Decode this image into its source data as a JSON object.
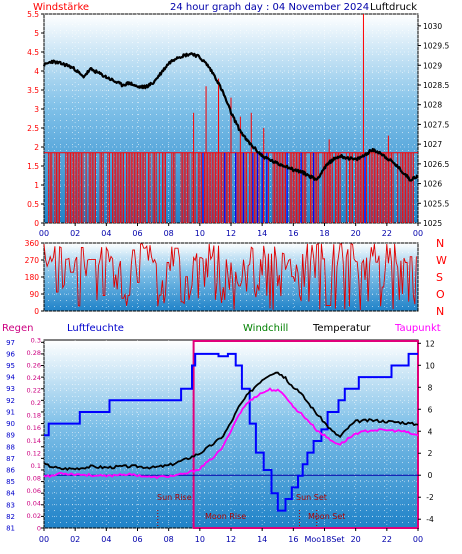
{
  "header": {
    "left_label": "Windstärke",
    "title": "24 hour graph day : 04 November 2024",
    "right_label": "Luftdruck"
  },
  "wind_dir_labels": [
    "N",
    "W",
    "S",
    "O",
    "N"
  ],
  "bottom_header": {
    "regen": "Regen",
    "luftfeuchte": "Luftfeuchte",
    "windchill": "Windchill",
    "temperatur": "Temperatur",
    "taupunkt": "Taupunkt"
  },
  "annotations": {
    "sun_rise": "Sun Rise",
    "moon_rise": "Moon Rise",
    "sun_set": "Sun Set",
    "moon_set": "Moon Set",
    "moon_set_tick": "Moo18Set"
  },
  "colors": {
    "wind": "#ff0000",
    "gust": "#0000ff",
    "pressure": "#000000",
    "direction": "#e00000",
    "humidity": "#0000ff",
    "temperature": "#000000",
    "dewpoint": "#ff00ff",
    "rain_box": "#e0007a",
    "axis_left": "#ff0000",
    "axis_rain": "#cc0080",
    "axis_hum": "#0000cc",
    "windchill_label": "#008000",
    "title": "#0000aa"
  },
  "chart_data": [
    {
      "type": "line",
      "name": "wind-pressure",
      "x_ticks": [
        "00",
        "02",
        "04",
        "06",
        "08",
        "10",
        "12",
        "14",
        "16",
        "18",
        "20",
        "22",
        "00"
      ],
      "yleft_label": "Windstärke",
      "yleft_ticks": [
        "0",
        "0.5",
        "1",
        "1.5",
        "2",
        "2.5",
        "3",
        "3.5",
        "4",
        "4.5",
        "5",
        "5.5"
      ],
      "ylim_left": [
        0,
        5.5
      ],
      "yright_label": "Luftdruck",
      "yright_ticks": [
        "1025",
        "1025.5",
        "1026",
        "1026.5",
        "1027",
        "1027.5",
        "1028",
        "1028.5",
        "1029",
        "1029.5",
        "1030"
      ],
      "ylim_right": [
        1025,
        1030.3
      ],
      "pressure_x": [
        0,
        0.5,
        1,
        1.5,
        2,
        2.5,
        3,
        3.5,
        4,
        4.5,
        5,
        5.5,
        6,
        6.5,
        7,
        7.5,
        8,
        8.5,
        9,
        9.5,
        10,
        10.5,
        11,
        11.5,
        12,
        12.5,
        13,
        13.5,
        14,
        14.5,
        15,
        15.5,
        16,
        16.5,
        17,
        17.5,
        18,
        18.5,
        19,
        19.5,
        20,
        20.5,
        21,
        21.5,
        22,
        22.5,
        23,
        23.5,
        24
      ],
      "pressure": [
        1029.0,
        1029.1,
        1029.05,
        1029.0,
        1028.9,
        1028.7,
        1028.9,
        1028.8,
        1028.7,
        1028.6,
        1028.5,
        1028.55,
        1028.45,
        1028.45,
        1028.55,
        1028.8,
        1029.05,
        1029.2,
        1029.25,
        1029.3,
        1029.2,
        1029.0,
        1028.7,
        1028.3,
        1027.8,
        1027.4,
        1027.1,
        1026.9,
        1026.7,
        1026.6,
        1026.5,
        1026.45,
        1026.35,
        1026.3,
        1026.2,
        1026.1,
        1026.4,
        1026.6,
        1026.7,
        1026.65,
        1026.6,
        1026.7,
        1026.85,
        1026.8,
        1026.65,
        1026.5,
        1026.3,
        1026.1,
        1026.2
      ],
      "wind_base": 1.85,
      "wind_gust_spikes": [
        {
          "h": 9.6,
          "v": 2.9
        },
        {
          "h": 10.4,
          "v": 3.6
        },
        {
          "h": 11.2,
          "v": 3.8
        },
        {
          "h": 12.0,
          "v": 3.3
        },
        {
          "h": 12.6,
          "v": 2.8
        },
        {
          "h": 13.3,
          "v": 2.9
        },
        {
          "h": 14.1,
          "v": 2.5
        },
        {
          "h": 18.3,
          "v": 2.2
        },
        {
          "h": 20.5,
          "v": 5.5
        },
        {
          "h": 22.1,
          "v": 2.3
        }
      ],
      "blue_gust_marks": [
        10.2,
        11.6,
        12.3,
        12.8,
        13.4,
        13.7,
        14.0,
        14.3,
        15.6,
        16.5,
        17.3,
        20.6
      ],
      "zero_gaps": [
        [
          0.0,
          0.2
        ],
        [
          1.0,
          1.3
        ],
        [
          3.4,
          3.6
        ],
        [
          5.1,
          5.2
        ],
        [
          6.5,
          6.6
        ],
        [
          7.8,
          8.0
        ],
        [
          8.6,
          8.7
        ],
        [
          16.8,
          17.0
        ],
        [
          19.2,
          19.3
        ],
        [
          23.8,
          24.0
        ]
      ]
    },
    {
      "type": "line",
      "name": "wind-direction",
      "x_ticks": [
        "00",
        "02",
        "04",
        "06",
        "08",
        "10",
        "12",
        "14",
        "16",
        "18",
        "20",
        "22",
        "00"
      ],
      "y_ticks": [
        "0",
        "90",
        "180",
        "270",
        "360"
      ],
      "ylim": [
        0,
        360
      ],
      "right_labels": [
        "N",
        "W",
        "S",
        "O",
        "N"
      ]
    },
    {
      "type": "line",
      "name": "humidity-temperature",
      "x_ticks": [
        "00",
        "02",
        "04",
        "06",
        "08",
        "10",
        "12",
        "14",
        "16",
        "18",
        "20",
        "22",
        "00"
      ],
      "y_rain_ticks": [
        "0",
        "0.02",
        "0.04",
        "0.06",
        "0.08",
        "0.1",
        "0.12",
        "0.14",
        "0.16",
        "0.18",
        "0.2",
        "0.22",
        "0.24",
        "0.26",
        "0.28",
        "0.3"
      ],
      "ylim_rain": [
        0,
        0.3
      ],
      "y_humidity_ticks": [
        "81",
        "82",
        "83",
        "84",
        "85",
        "86",
        "87",
        "88",
        "89",
        "90",
        "91",
        "92",
        "93",
        "94",
        "95",
        "96",
        "97"
      ],
      "ylim_humidity": [
        81,
        97.2
      ],
      "y_temp_ticks": [
        "-4",
        "-2",
        "0",
        "2",
        "4",
        "6",
        "8",
        "10",
        "12"
      ],
      "ylim_temp": [
        -4.8,
        12.3
      ],
      "humidity_steps": [
        [
          0,
          89
        ],
        [
          0.3,
          90
        ],
        [
          2.3,
          91
        ],
        [
          4.2,
          92
        ],
        [
          8.8,
          93
        ],
        [
          9.5,
          95
        ],
        [
          9.7,
          96
        ],
        [
          11.2,
          95.8
        ],
        [
          11.8,
          96
        ],
        [
          12.3,
          95
        ],
        [
          12.7,
          93
        ],
        [
          13.2,
          90
        ],
        [
          13.6,
          87.5
        ],
        [
          14.1,
          86
        ],
        [
          14.6,
          84
        ],
        [
          15.0,
          82.5
        ],
        [
          15.5,
          83.5
        ],
        [
          15.9,
          84.5
        ],
        [
          16.3,
          85.5
        ],
        [
          16.6,
          86.5
        ],
        [
          16.9,
          87.5
        ],
        [
          17.3,
          88.5
        ],
        [
          17.8,
          89.5
        ],
        [
          18.2,
          91
        ],
        [
          18.9,
          92
        ],
        [
          19.3,
          93
        ],
        [
          20.2,
          94
        ],
        [
          22.3,
          95
        ],
        [
          23.4,
          96
        ]
      ],
      "temperature": [
        [
          0,
          1.0
        ],
        [
          0.5,
          0.8
        ],
        [
          1,
          0.6
        ],
        [
          2,
          0.6
        ],
        [
          3,
          0.8
        ],
        [
          4,
          0.7
        ],
        [
          5,
          0.8
        ],
        [
          6,
          0.8
        ],
        [
          7,
          0.7
        ],
        [
          8,
          0.9
        ],
        [
          9,
          1.4
        ],
        [
          10,
          2.0
        ],
        [
          10.5,
          2.5
        ],
        [
          11,
          3.0
        ],
        [
          11.5,
          3.6
        ],
        [
          12,
          4.8
        ],
        [
          12.5,
          6.2
        ],
        [
          13,
          7.2
        ],
        [
          13.5,
          8.0
        ],
        [
          14,
          8.7
        ],
        [
          14.5,
          9.2
        ],
        [
          15,
          9.4
        ],
        [
          15.5,
          8.8
        ],
        [
          16,
          8.0
        ],
        [
          16.5,
          7.4
        ],
        [
          17,
          6.5
        ],
        [
          17.5,
          5.6
        ],
        [
          18,
          4.8
        ],
        [
          18.5,
          4.0
        ],
        [
          19,
          3.5
        ],
        [
          19.5,
          4.3
        ],
        [
          20,
          4.9
        ],
        [
          21,
          5.0
        ],
        [
          22,
          4.9
        ],
        [
          23,
          4.8
        ],
        [
          24,
          4.6
        ]
      ],
      "dewpoint": [
        [
          0,
          0.0
        ],
        [
          0.5,
          -0.1
        ],
        [
          1,
          0.2
        ],
        [
          2,
          0.1
        ],
        [
          3,
          0.0
        ],
        [
          4,
          -0.1
        ],
        [
          5,
          0.1
        ],
        [
          6,
          0.0
        ],
        [
          7,
          -0.2
        ],
        [
          8,
          -0.1
        ],
        [
          9,
          0.1
        ],
        [
          10,
          0.6
        ],
        [
          10.5,
          1.2
        ],
        [
          11,
          1.8
        ],
        [
          11.5,
          2.6
        ],
        [
          12,
          4.1
        ],
        [
          12.5,
          5.5
        ],
        [
          13,
          6.5
        ],
        [
          13.5,
          7.1
        ],
        [
          14,
          7.5
        ],
        [
          14.5,
          7.8
        ],
        [
          15,
          7.7
        ],
        [
          15.5,
          7.2
        ],
        [
          16,
          6.2
        ],
        [
          16.5,
          5.6
        ],
        [
          17,
          4.9
        ],
        [
          17.5,
          4.1
        ],
        [
          18,
          3.6
        ],
        [
          18.5,
          3.1
        ],
        [
          19,
          2.8
        ],
        [
          19.5,
          3.3
        ],
        [
          20,
          3.8
        ],
        [
          21,
          4.1
        ],
        [
          22,
          4.1
        ],
        [
          23,
          4.0
        ],
        [
          24,
          3.6
        ]
      ],
      "rain_box_hours": [
        9.6,
        24.0
      ],
      "sun_rise_hour": 7.3,
      "sun_set_hour": 16.4,
      "moon_set_hour": 17.5
    }
  ]
}
